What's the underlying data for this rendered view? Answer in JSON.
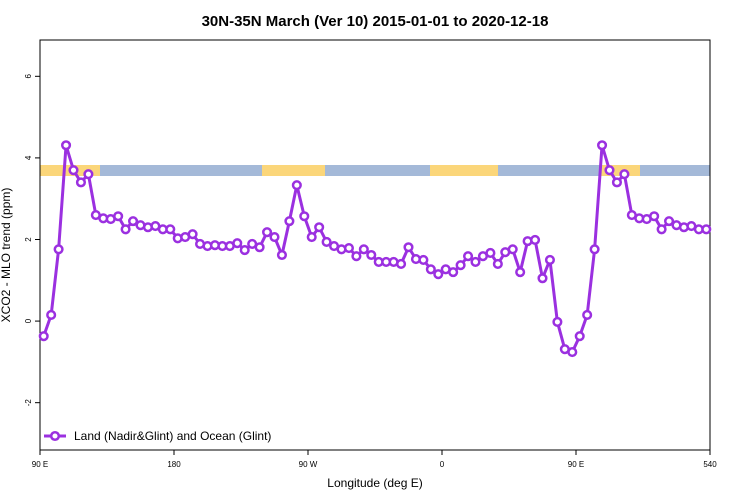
{
  "chart_data": {
    "type": "line",
    "title": "30N-35N March (Ver 10)   2015-01-01 to 2020-12-18",
    "x_label": "Longitude (deg E)",
    "y_label": "XCO2 - MLO trend (ppm)",
    "xlim": [
      90,
      540
    ],
    "xticks": [
      {
        "value": 90,
        "label": "90 E"
      },
      180,
      {
        "value": 270,
        "label": "90 W"
      },
      {
        "value": 360,
        "label": "0"
      },
      {
        "value": 450,
        "label": "90 E"
      },
      540
    ],
    "ylim": [
      -3.16,
      6.89
    ],
    "yticks": [
      -2,
      0,
      2,
      4,
      6
    ],
    "legend": "bottom-left",
    "x": [
      92.5,
      97.5,
      102.5,
      107.5,
      112.5,
      117.5,
      122.5,
      127.5,
      132.5,
      137.5,
      142.5,
      147.5,
      152.5,
      157.5,
      162.5,
      167.5,
      172.5,
      177.5,
      182.5,
      187.5,
      192.5,
      197.5,
      202.5,
      207.5,
      212.5,
      217.5,
      222.5,
      227.5,
      232.5,
      237.5,
      242.5,
      247.5,
      252.5,
      257.5,
      262.5,
      267.5,
      272.5,
      277.5,
      282.5,
      287.5,
      292.5,
      297.5,
      302.5,
      307.5,
      312.5,
      317.5,
      322.5,
      327.5,
      332.5,
      337.5,
      342.5,
      347.5,
      352.5,
      357.5,
      362.5,
      367.5,
      372.5,
      377.5,
      382.5,
      387.5,
      392.5,
      397.5,
      402.5,
      407.5,
      412.5,
      417.5,
      422.5,
      427.5,
      432.5,
      437.5,
      442.5,
      447.5,
      452.5,
      457.5,
      462.5,
      467.5,
      472.5,
      477.5,
      482.5,
      487.5,
      492.5,
      497.5,
      502.5,
      507.5,
      512.5,
      517.5,
      522.5,
      527.5,
      532.5,
      537.5
    ],
    "series": [
      {
        "name": "Land (Nadir&Glint) and Ocean (Glint)",
        "color": "#9b30e0",
        "values": [
          -0.37,
          0.15,
          1.76,
          4.31,
          3.7,
          3.4,
          3.6,
          2.6,
          2.52,
          2.5,
          2.57,
          2.25,
          2.45,
          2.35,
          2.3,
          2.33,
          2.25,
          2.25,
          2.03,
          2.06,
          2.13,
          1.89,
          1.84,
          1.86,
          1.84,
          1.84,
          1.91,
          1.74,
          1.89,
          1.81,
          2.18,
          2.06,
          1.62,
          2.45,
          3.33,
          2.57,
          2.06,
          2.3,
          1.94,
          1.84,
          1.76,
          1.79,
          1.59,
          1.76,
          1.62,
          1.45,
          1.45,
          1.45,
          1.4,
          1.81,
          1.52,
          1.5,
          1.27,
          1.15,
          1.27,
          1.2,
          1.37,
          1.59,
          1.45,
          1.59,
          1.67,
          1.4,
          1.69,
          1.76,
          1.2,
          1.96,
          1.99,
          1.05,
          1.5,
          -0.02,
          -0.69,
          -0.76,
          -0.37,
          0.15,
          1.76,
          4.31,
          3.7,
          3.4,
          3.6,
          2.6,
          2.52,
          2.5,
          2.57,
          2.25,
          2.45,
          2.35,
          2.3,
          2.33,
          2.25,
          2.25
        ]
      }
    ]
  }
}
